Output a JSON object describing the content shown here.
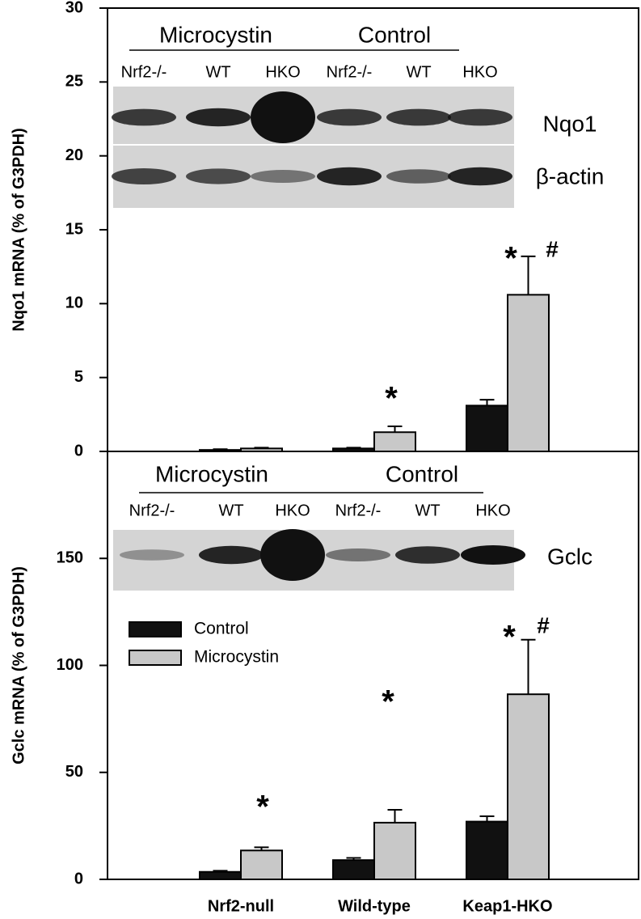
{
  "chart_data": [
    {
      "type": "bar",
      "y_label": "Nqo1 mRNA (% of G3PDH)",
      "categories": [
        null,
        null,
        null
      ],
      "series": [
        {
          "name": "Control",
          "color": "#111111",
          "values": [
            0.1,
            0.2,
            3.1
          ],
          "errors": [
            0.05,
            0.05,
            0.4
          ]
        },
        {
          "name": "Microcystin",
          "color": "#c8c8c8",
          "values": [
            0.2,
            1.3,
            10.6
          ],
          "errors": [
            0.05,
            0.4,
            2.6
          ]
        }
      ],
      "ylim": [
        0,
        30
      ],
      "yticks": [
        0,
        5,
        10,
        15,
        20,
        25,
        30
      ],
      "legend": "none",
      "annotations": [
        "*",
        "*",
        "#"
      ],
      "blot_groups": [
        "Microcystin",
        "Control"
      ],
      "blot_lanes": [
        "Nrf2-/-",
        "WT",
        "HKO",
        "Nrf2-/-",
        "WT",
        "HKO"
      ],
      "blot_bands": [
        "Nqo1",
        "β-actin"
      ]
    },
    {
      "type": "bar",
      "y_label": "Gclc mRNA (% of G3PDH)",
      "categories": [
        "Nrf2-null",
        "Wild-type",
        "Keap1-HKO"
      ],
      "series": [
        {
          "name": "Control",
          "color": "#111111",
          "values": [
            3.5,
            9,
            27
          ],
          "errors": [
            0.5,
            1,
            2.5
          ]
        },
        {
          "name": "Microcystin",
          "color": "#c8c8c8",
          "values": [
            13.5,
            26.5,
            86.5
          ],
          "errors": [
            1.5,
            6,
            25.5
          ]
        }
      ],
      "ylim": [
        0,
        200
      ],
      "yticks": [
        0,
        50,
        100,
        150
      ],
      "legend": "upper left",
      "annotations": [
        "*",
        "*",
        "*",
        "#"
      ],
      "blot_groups": [
        "Microcystin",
        "Control"
      ],
      "blot_lanes": [
        "Nrf2-/-",
        "WT",
        "HKO",
        "Nrf2-/-",
        "WT",
        "HKO"
      ],
      "blot_bands": [
        "Gclc"
      ]
    }
  ]
}
